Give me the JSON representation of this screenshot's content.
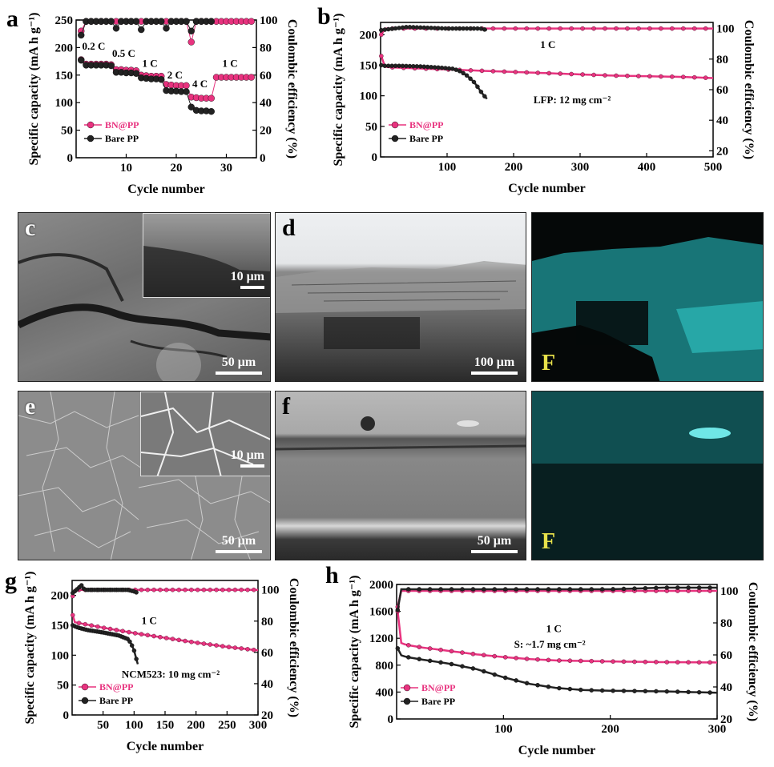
{
  "figure": {
    "panels": {
      "c": {
        "letter": "c",
        "scale_main": "50 μm",
        "scale_inset": "10 μm"
      },
      "d": {
        "letter": "d",
        "scale_main": "100 μm",
        "map_element": "F"
      },
      "e": {
        "letter": "e",
        "scale_main": "50 μm",
        "scale_inset": "10 μm"
      },
      "f": {
        "letter": "f",
        "scale_main": "50 μm",
        "map_element": "F"
      }
    },
    "colors": {
      "bn": "#e8337f",
      "bare": "#222222",
      "map": "#2ec8c8",
      "map_label": "#e8e14a"
    }
  },
  "chart_data": [
    {
      "id": "a",
      "letter": "a",
      "type": "scatter",
      "xlabel": "Cycle number",
      "ylabel": "Specific capacity (mA h g⁻¹)",
      "y2label": "Coulombic efficiency (%)",
      "xlim": [
        0,
        36
      ],
      "ylim": [
        0,
        250
      ],
      "y2lim": [
        0,
        100
      ],
      "xticks": [
        10,
        20,
        30
      ],
      "yticks": [
        0,
        50,
        100,
        150,
        200,
        250
      ],
      "y2ticks": [
        0,
        20,
        40,
        60,
        80,
        100
      ],
      "legend": [
        {
          "name": "BN@PP",
          "color": "#e8337f"
        },
        {
          "name": "Bare PP",
          "color": "#222222"
        }
      ],
      "legend_position": "bottom-left",
      "annotations": [
        {
          "text": "0.2 C",
          "x": 1.2,
          "y": 196
        },
        {
          "text": "0.5 C",
          "x": 7.2,
          "y": 183
        },
        {
          "text": "1 C",
          "x": 13.2,
          "y": 165
        },
        {
          "text": "2 C",
          "x": 18.2,
          "y": 144
        },
        {
          "text": "4 C",
          "x": 23.2,
          "y": 128
        },
        {
          "text": "1 C",
          "x": 29.2,
          "y": 165
        }
      ],
      "series": [
        {
          "name": "BN@PP",
          "axis": "y",
          "color": "#e8337f",
          "marker": true,
          "x": [
            1,
            2,
            3,
            4,
            5,
            6,
            7,
            8,
            9,
            10,
            11,
            12,
            13,
            14,
            15,
            16,
            17,
            18,
            19,
            20,
            21,
            22,
            23,
            24,
            25,
            26,
            27,
            28,
            29,
            30,
            31,
            32,
            33,
            34,
            35
          ],
          "y": [
            178,
            170,
            170,
            170,
            170,
            170,
            169,
            160,
            160,
            159,
            159,
            158,
            150,
            149,
            148,
            148,
            148,
            133,
            132,
            131,
            131,
            131,
            110,
            109,
            108,
            108,
            108,
            146,
            146,
            146,
            146,
            146,
            146,
            146,
            146
          ]
        },
        {
          "name": "Bare PP",
          "axis": "y",
          "color": "#222222",
          "marker": true,
          "x": [
            1,
            2,
            3,
            4,
            5,
            6,
            7,
            8,
            9,
            10,
            11,
            12,
            13,
            14,
            15,
            16,
            17,
            18,
            19,
            20,
            21,
            22,
            23,
            24,
            25,
            26,
            27
          ],
          "y": [
            177,
            168,
            168,
            168,
            168,
            168,
            167,
            155,
            155,
            154,
            154,
            153,
            145,
            144,
            143,
            143,
            142,
            122,
            121,
            121,
            120,
            120,
            92,
            86,
            85,
            85,
            84
          ]
        },
        {
          "name": "BN@PP CE",
          "axis": "y2",
          "color": "#e8337f",
          "marker": true,
          "x": [
            1,
            2,
            3,
            4,
            5,
            6,
            7,
            8,
            9,
            10,
            11,
            12,
            13,
            14,
            15,
            16,
            17,
            18,
            19,
            20,
            21,
            22,
            23,
            24,
            25,
            26,
            27,
            28,
            29,
            30,
            31,
            32,
            33,
            34,
            35
          ],
          "y": [
            92,
            99,
            99,
            99,
            99,
            99,
            99,
            99,
            99,
            99,
            99,
            99,
            99,
            99,
            99,
            99,
            99,
            99,
            99,
            99,
            99,
            99,
            84,
            99,
            99,
            99,
            99,
            99,
            99,
            99,
            99,
            99,
            99,
            99,
            99
          ]
        },
        {
          "name": "Bare PP CE",
          "axis": "y2",
          "color": "#222222",
          "marker": true,
          "x": [
            1,
            2,
            3,
            4,
            5,
            6,
            7,
            8,
            9,
            10,
            11,
            12,
            13,
            14,
            15,
            16,
            17,
            18,
            19,
            20,
            21,
            22,
            23,
            24,
            25,
            26,
            27
          ],
          "y": [
            89,
            99,
            99,
            99,
            99,
            99,
            99,
            94,
            99,
            99,
            99,
            99,
            93,
            99,
            99,
            99,
            99,
            94,
            99,
            99,
            99,
            99,
            92,
            99,
            99,
            99,
            99
          ]
        }
      ]
    },
    {
      "id": "b",
      "letter": "b",
      "type": "scatter",
      "xlabel": "Cycle number",
      "ylabel": "Specific capacity (mA h g⁻¹)",
      "y2label": "Coulombic efficiency (%)",
      "xlim": [
        0,
        500
      ],
      "ylim": [
        0,
        220
      ],
      "y2lim": [
        16,
        104
      ],
      "xticks": [
        100,
        200,
        300,
        400,
        500
      ],
      "yticks": [
        0,
        50,
        100,
        150,
        200
      ],
      "y2ticks": [
        20,
        40,
        60,
        80,
        100
      ],
      "legend": [
        {
          "name": "BN@PP",
          "color": "#e8337f"
        },
        {
          "name": "Bare PP",
          "color": "#222222"
        }
      ],
      "legend_position": "bottom-left",
      "annotations": [
        {
          "text": "1 C",
          "x": 240,
          "y": 178
        },
        {
          "text": "LFP: 12 mg cm⁻²",
          "x": 230,
          "y": 88
        }
      ],
      "series": [
        {
          "name": "BN@PP",
          "axis": "y",
          "color": "#e8337f",
          "marker": false,
          "x": [
            1,
            3,
            5,
            10,
            25,
            50,
            100,
            150,
            200,
            250,
            300,
            350,
            400,
            450,
            500
          ],
          "y": [
            165,
            150,
            148,
            147,
            146,
            145,
            143,
            141,
            139,
            137,
            135,
            133,
            132,
            131,
            129
          ]
        },
        {
          "name": "Bare PP",
          "axis": "y",
          "color": "#222222",
          "marker": false,
          "x": [
            1,
            5,
            10,
            30,
            60,
            90,
            110,
            120,
            130,
            140,
            145,
            150,
            155,
            160
          ],
          "y": [
            150,
            149,
            149,
            149,
            148,
            146,
            144,
            140,
            133,
            123,
            116,
            108,
            101,
            95
          ]
        },
        {
          "name": "BN@PP CE",
          "axis": "y2",
          "color": "#e8337f",
          "marker": false,
          "x": [
            1,
            3,
            500
          ],
          "y": [
            96,
            100,
            100
          ]
        },
        {
          "name": "Bare PP CE",
          "axis": "y2",
          "color": "#222222",
          "marker": false,
          "x": [
            1,
            40,
            100,
            150,
            160
          ],
          "y": [
            99,
            101,
            100,
            100,
            99
          ]
        }
      ]
    },
    {
      "id": "g",
      "letter": "g",
      "type": "scatter",
      "xlabel": "Cycle number",
      "ylabel": "Specific capacity (mA h g⁻¹)",
      "y2label": "Coulombic efficiency (%)",
      "xlim": [
        0,
        300
      ],
      "ylim": [
        0,
        225
      ],
      "y2lim": [
        20,
        106
      ],
      "xticks": [
        50,
        100,
        150,
        200,
        250,
        300
      ],
      "yticks": [
        0,
        50,
        100,
        150,
        200
      ],
      "y2ticks": [
        20,
        40,
        60,
        80,
        100
      ],
      "legend": [
        {
          "name": "BN@PP",
          "color": "#e8337f"
        },
        {
          "name": "Bare PP",
          "color": "#222222"
        }
      ],
      "legend_position": "bottom-left",
      "annotations": [
        {
          "text": "1 C",
          "x": 112,
          "y": 152
        },
        {
          "text": "NCM523: 10 mg cm⁻²",
          "x": 80,
          "y": 62
        }
      ],
      "series": [
        {
          "name": "BN@PP",
          "axis": "y",
          "color": "#e8337f",
          "marker": false,
          "x": [
            1,
            3,
            5,
            10,
            25,
            50,
            100,
            150,
            200,
            250,
            300
          ],
          "y": [
            167,
            156,
            155,
            154,
            151,
            146,
            137,
            129,
            121,
            114,
            108
          ]
        },
        {
          "name": "Bare PP",
          "axis": "y",
          "color": "#222222",
          "marker": false,
          "x": [
            1,
            5,
            10,
            25,
            50,
            75,
            90,
            95,
            100,
            103,
            106
          ],
          "y": [
            150,
            148,
            146,
            142,
            138,
            133,
            127,
            120,
            108,
            96,
            85
          ]
        },
        {
          "name": "BN@PP CE",
          "axis": "y2",
          "color": "#e8337f",
          "marker": false,
          "x": [
            1,
            3,
            300
          ],
          "y": [
            96,
            100,
            100
          ]
        },
        {
          "name": "Bare PP CE",
          "axis": "y2",
          "color": "#222222",
          "marker": false,
          "x": [
            1,
            10,
            15,
            20,
            90,
            100,
            106
          ],
          "y": [
            98,
            101,
            103,
            100,
            100,
            99,
            98
          ]
        }
      ]
    },
    {
      "id": "h",
      "letter": "h",
      "type": "scatter",
      "xlabel": "Cycle number",
      "ylabel": "Specific capacity (mA h g⁻¹)",
      "y2label": "Coulombic efficiency (%)",
      "xlim": [
        0,
        300
      ],
      "ylim": [
        0,
        2000
      ],
      "y2lim": [
        20,
        104
      ],
      "xticks": [
        100,
        200,
        300
      ],
      "yticks": [
        0,
        400,
        800,
        1200,
        1600,
        2000
      ],
      "y2ticks": [
        20,
        40,
        60,
        80,
        100
      ],
      "legend": [
        {
          "name": "BN@PP",
          "color": "#e8337f"
        },
        {
          "name": "Bare PP",
          "color": "#222222"
        }
      ],
      "legend_position": "bottom-left",
      "annotations": [
        {
          "text": "1 C",
          "x": 140,
          "y": 1290
        },
        {
          "text": "S: ~1.7 mg cm⁻²",
          "x": 110,
          "y": 1060
        }
      ],
      "series": [
        {
          "name": "BN@PP",
          "axis": "y",
          "color": "#e8337f",
          "marker": false,
          "x": [
            1,
            3,
            5,
            10,
            25,
            50,
            75,
            100,
            125,
            150,
            200,
            250,
            300
          ],
          "y": [
            1600,
            1150,
            1120,
            1100,
            1060,
            1010,
            960,
            920,
            890,
            870,
            855,
            845,
            840
          ]
        },
        {
          "name": "Bare PP",
          "axis": "y",
          "color": "#222222",
          "marker": false,
          "x": [
            1,
            3,
            5,
            10,
            25,
            50,
            75,
            100,
            125,
            150,
            175,
            200,
            250,
            300
          ],
          "y": [
            1050,
            960,
            940,
            920,
            880,
            820,
            740,
            620,
            520,
            460,
            430,
            420,
            410,
            390
          ]
        },
        {
          "name": "BN@PP CE",
          "axis": "y2",
          "color": "#e8337f",
          "marker": false,
          "x": [
            1,
            3,
            300
          ],
          "y": [
            90,
            100,
            100
          ]
        },
        {
          "name": "Bare PP CE",
          "axis": "y2",
          "color": "#222222",
          "marker": false,
          "x": [
            1,
            3,
            50,
            100,
            150,
            200,
            250,
            300
          ],
          "y": [
            88,
            101,
            101,
            101,
            101,
            101,
            102,
            102
          ]
        }
      ]
    }
  ]
}
